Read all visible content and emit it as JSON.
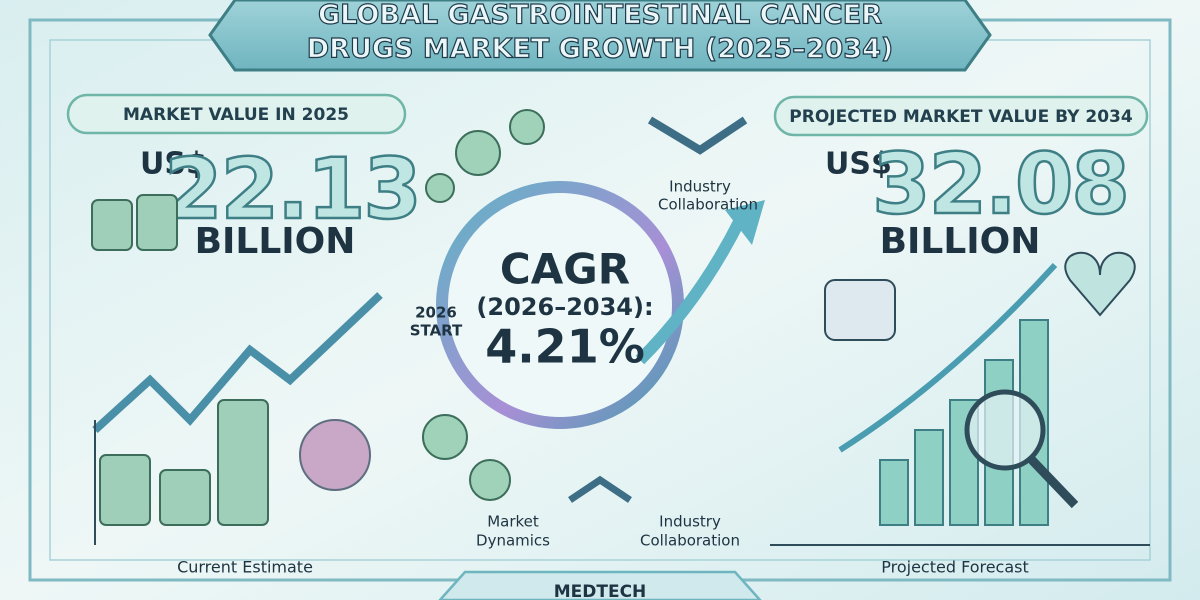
{
  "title": {
    "lines": [
      "GLOBAL GASTROINTESTINAL CANCER",
      "DRUGS MARKET GROWTH (2025–2034)"
    ]
  },
  "left_panel": {
    "label": "MARKET VALUE IN 2025",
    "currency": "US$",
    "value": "22.13",
    "unit": "BILLION",
    "caption": "Current Estimate"
  },
  "center": {
    "cagr_title": "CAGR",
    "cagr_period": "(2026–2034):",
    "cagr_value": "4.21%",
    "start_label": [
      "2026",
      "START"
    ],
    "top_label": [
      "Industry",
      "Collaboration"
    ],
    "bottom_left_label": [
      "Market",
      "Dynamics"
    ],
    "bottom_right_label": [
      "Industry",
      "Collaboration"
    ]
  },
  "right_panel": {
    "label": "PROJECTED MARKET VALUE BY 2034",
    "currency": "US$",
    "value": "32.08",
    "unit": "BILLION",
    "caption": "Projected Forecast"
  },
  "footer": {
    "label": "MEDTECH"
  }
}
